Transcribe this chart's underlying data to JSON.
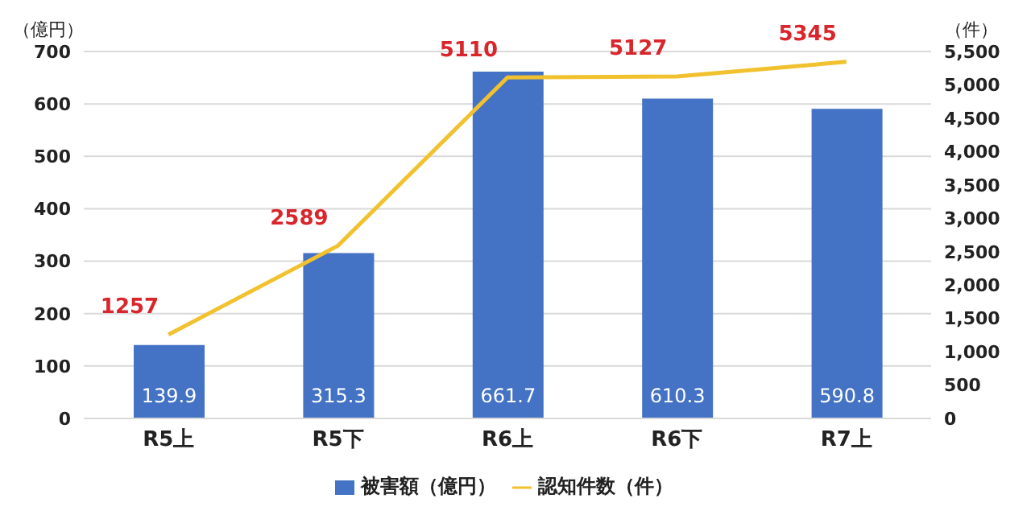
{
  "chart_data": {
    "type": "bar",
    "categories": [
      "R5上",
      "R5下",
      "R6上",
      "R6下",
      "R7上"
    ],
    "ylabel": "（億円）",
    "y2label": "（件）",
    "series": [
      {
        "name": "被害額（億円）",
        "color": "#4472c4",
        "values": [
          139.9,
          315.3,
          661.7,
          610.3,
          590.8
        ]
      },
      {
        "name": "認知件数（件）",
        "type": "line",
        "axis": "y2",
        "color": "#f2c12e",
        "values": [
          1257,
          2589,
          5110,
          5127,
          5345
        ]
      }
    ],
    "ylim": [
      0,
      700
    ],
    "yticks": [
      0,
      100,
      200,
      300,
      400,
      500,
      600,
      700
    ],
    "y2lim": [
      0,
      5500
    ],
    "y2ticks": [
      0,
      {
        "value": 500,
        "label": "500"
      },
      {
        "value": 1000,
        "label": "1,000"
      },
      {
        "value": 1500,
        "label": "1,500"
      },
      {
        "value": 2000,
        "label": "2,000"
      },
      {
        "value": 2500,
        "label": "2,500"
      },
      {
        "value": 3000,
        "label": "3,000"
      },
      {
        "value": 3500,
        "label": "3,500"
      },
      {
        "value": 4000,
        "label": "4,000"
      },
      {
        "value": 4500,
        "label": "4,500"
      },
      {
        "value": 5000,
        "label": "5,000"
      },
      {
        "value": 5500,
        "label": "5,500"
      }
    ],
    "grid": "y",
    "legend": "bottom",
    "data_labels": true,
    "marker": "none"
  }
}
